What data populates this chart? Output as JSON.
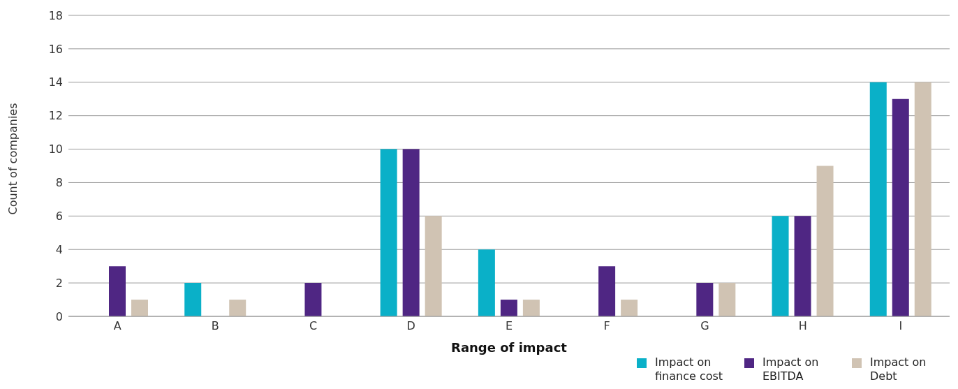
{
  "chart_data": {
    "type": "bar",
    "xlabel": "Range of impact",
    "ylabel": "Count of companies",
    "categories": [
      "A",
      "B",
      "C",
      "D",
      "E",
      "F",
      "G",
      "H",
      "I"
    ],
    "series": [
      {
        "name": "Impact on finance cost",
        "color": "#0ab0c8",
        "values": [
          0,
          2,
          0,
          10,
          4,
          0,
          0,
          6,
          14
        ]
      },
      {
        "name": "Impact on EBITDA",
        "color": "#4f2683",
        "values": [
          3,
          0,
          2,
          10,
          1,
          3,
          2,
          6,
          13
        ]
      },
      {
        "name": "Impact on Debt",
        "color": "#d0c3b3",
        "values": [
          1,
          1,
          0,
          6,
          1,
          1,
          2,
          9,
          14
        ]
      }
    ],
    "ylim": [
      0,
      18
    ],
    "yticks": [
      0,
      2,
      4,
      6,
      8,
      10,
      12,
      14,
      16,
      18
    ],
    "grid": "y",
    "legend": "bottom right"
  }
}
